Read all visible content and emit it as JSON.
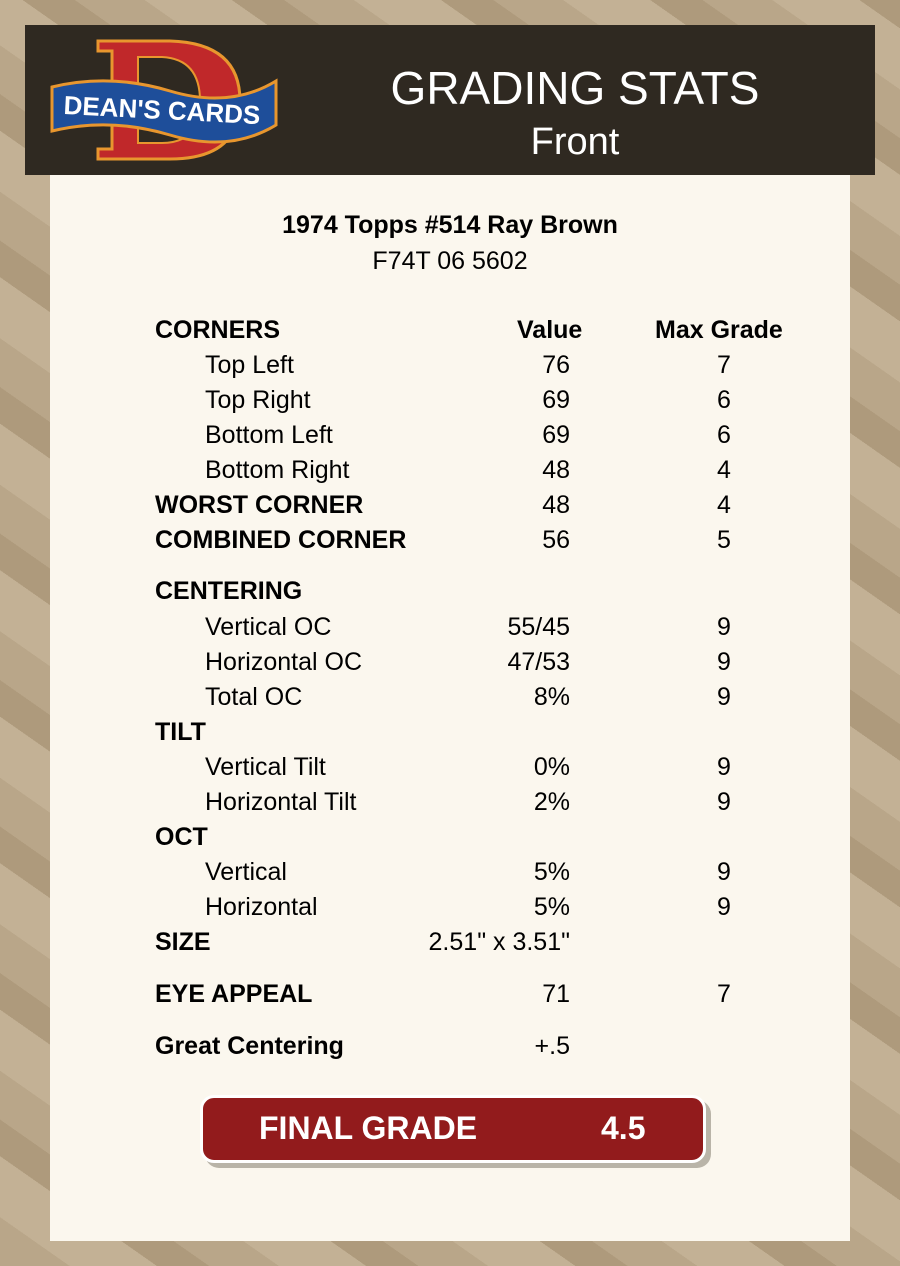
{
  "header": {
    "logo_text": "DEAN'S CARDS",
    "title": "GRADING STATS",
    "subtitle": "Front"
  },
  "card": {
    "name": "1974 Topps #514 Ray Brown",
    "cert": "F74T 06 5602"
  },
  "columns": {
    "value": "Value",
    "max": "Max Grade"
  },
  "rows": [
    {
      "label": "CORNERS",
      "bold": true,
      "header": true
    },
    {
      "label": "Top Left",
      "value": "76",
      "max": "7"
    },
    {
      "label": "Top Right",
      "value": "69",
      "max": "6"
    },
    {
      "label": "Bottom Left",
      "value": "69",
      "max": "6"
    },
    {
      "label": "Bottom Right",
      "value": "48",
      "max": "4"
    },
    {
      "label": "WORST CORNER",
      "bold": true,
      "value": "48",
      "max": "4"
    },
    {
      "label": "COMBINED CORNER",
      "bold": true,
      "value": "56",
      "max": "5"
    },
    {
      "label": "CENTERING",
      "bold": true
    },
    {
      "label": "Vertical OC",
      "value": "55/45",
      "max": "9"
    },
    {
      "label": "Horizontal OC",
      "value": "47/53",
      "max": "9"
    },
    {
      "label": "Total OC",
      "value": "8%",
      "max": "9"
    },
    {
      "label": "TILT",
      "bold": true
    },
    {
      "label": "Vertical Tilt",
      "value": "0%",
      "max": "9"
    },
    {
      "label": "Horizontal Tilt",
      "value": "2%",
      "max": "9"
    },
    {
      "label": "OCT",
      "bold": true
    },
    {
      "label": "Vertical",
      "value": "5%",
      "max": "9"
    },
    {
      "label": "Horizontal",
      "value": "5%",
      "max": "9"
    },
    {
      "label": "SIZE",
      "bold": true,
      "value": "2.51\" x 3.51\""
    },
    {
      "label": "EYE APPEAL",
      "bold": true,
      "value": "71",
      "max": "7"
    },
    {
      "label": "Great Centering",
      "bold": true,
      "value": "+.5"
    }
  ],
  "final": {
    "label": "FINAL GRADE",
    "value": "4.5"
  },
  "colors": {
    "header_bg": "#2f2921",
    "card_bg": "#fbf7ee",
    "final_bg": "#921b1c"
  }
}
